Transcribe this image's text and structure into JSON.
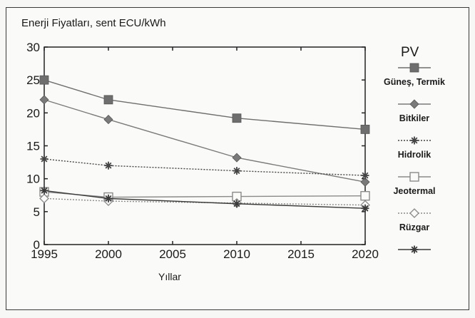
{
  "chart_data": {
    "type": "line",
    "title": "Enerji Fiyatları, sent ECU/kWh",
    "xlabel": "Yıllar",
    "ylabel": "",
    "xlim": [
      1995,
      2020
    ],
    "ylim": [
      0,
      30
    ],
    "x_ticks": [
      "1995",
      "2000",
      "2005",
      "2010",
      "2015",
      "2020"
    ],
    "y_ticks": [
      "0",
      "5",
      "10",
      "15",
      "20",
      "25",
      "30"
    ],
    "x": [
      1995,
      2000,
      2010,
      2020
    ],
    "grid": false,
    "legend_title": "PV",
    "legend_position": "right",
    "series": [
      {
        "name": "Güneş, Termik",
        "marker": "square-filled",
        "line": "solid",
        "color": "#6e6e6e",
        "values": [
          25,
          22,
          19.2,
          17.5
        ]
      },
      {
        "name": "Bitkiler",
        "marker": "diamond-filled",
        "line": "solid",
        "color": "#7a7a7a",
        "values": [
          22,
          19,
          13.2,
          9.5
        ]
      },
      {
        "name": "Hidrolik",
        "marker": "asterisk",
        "line": "dotted",
        "color": "#444444",
        "values": [
          13,
          12,
          11.2,
          10.5
        ]
      },
      {
        "name": "Jeotermal",
        "marker": "square-open",
        "line": "solid",
        "color": "#8a8a8a",
        "values": [
          8,
          7.2,
          7.3,
          7.4
        ]
      },
      {
        "name": "Rüzgar",
        "marker": "diamond-open",
        "line": "dotted",
        "color": "#8a8a8a",
        "values": [
          7,
          6.6,
          6.3,
          6
        ]
      },
      {
        "name": "",
        "marker": "asterisk",
        "line": "solid",
        "color": "#3a3a3a",
        "values": [
          8.2,
          7,
          6.2,
          5.5
        ]
      }
    ]
  }
}
